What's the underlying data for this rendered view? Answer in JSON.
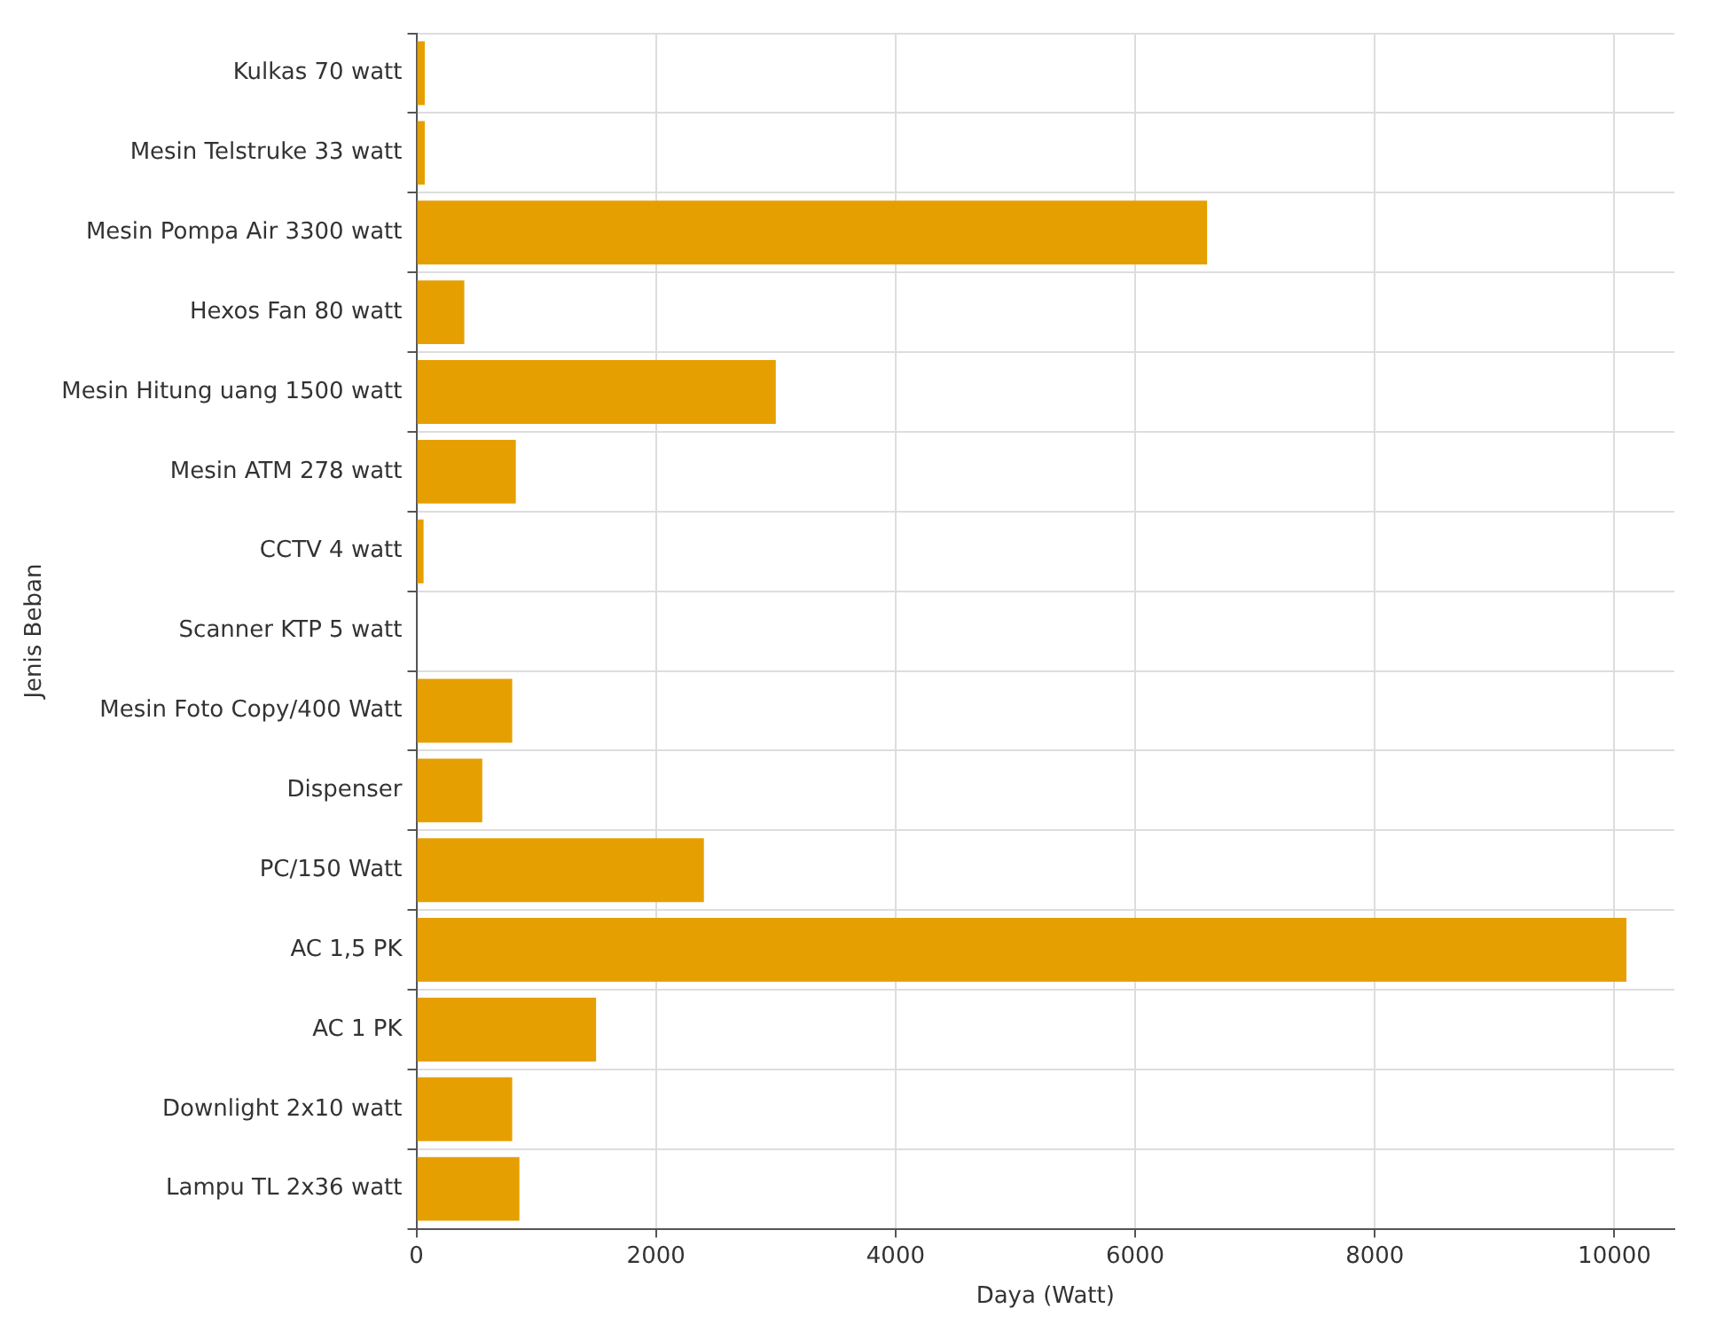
{
  "chart_data": {
    "type": "bar",
    "orientation": "horizontal",
    "xlabel": "Daya (Watt)",
    "ylabel": "Jenis Beban",
    "categories": [
      "Kulkas 70 watt",
      "Mesin Telstruke 33 watt",
      "Mesin Pompa Air 3300 watt",
      "Hexos Fan 80 watt",
      "Mesin Hitung uang 1500 watt",
      "Mesin ATM 278 watt",
      "CCTV 4 watt",
      "Scanner KTP 5 watt",
      "Mesin Foto Copy/400 Watt",
      "Dispenser",
      "PC/150 Watt",
      "AC 1,5 PK",
      "AC 1 PK",
      "Downlight 2x10 watt",
      "Lampu TL 2x36 watt"
    ],
    "values": [
      70,
      70,
      6600,
      400,
      3000,
      830,
      60,
      0,
      800,
      550,
      2400,
      10100,
      1500,
      800,
      860
    ],
    "color": "#e69f00",
    "xlim": [
      0,
      10500
    ],
    "xticks": [
      0,
      2000,
      4000,
      6000,
      8000,
      10000
    ],
    "grid": true
  }
}
